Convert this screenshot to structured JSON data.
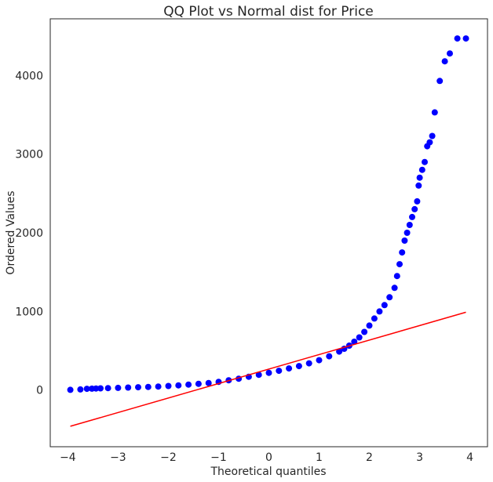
{
  "chart_data": {
    "type": "scatter",
    "title": "QQ Plot vs Normal dist for Price",
    "xlabel": "Theoretical quantiles",
    "ylabel": "Ordered Values",
    "xlim": [
      -4.35,
      4.35
    ],
    "ylim": [
      -720,
      4720
    ],
    "xticks": [
      -4,
      -3,
      -2,
      -1,
      0,
      1,
      2,
      3,
      4
    ],
    "yticks": [
      0,
      1000,
      2000,
      3000,
      4000
    ],
    "xtick_labels": [
      "−4",
      "−3",
      "−2",
      "−1",
      "0",
      "1",
      "2",
      "3",
      "4"
    ],
    "ytick_labels": [
      "0",
      "1000",
      "2000",
      "3000",
      "4000"
    ],
    "grid": false,
    "series": [
      {
        "marker": "circle",
        "color": "#0000ff",
        "points": [
          [
            -3.95,
            3
          ],
          [
            -3.75,
            8
          ],
          [
            -3.62,
            16
          ],
          [
            -3.52,
            18
          ],
          [
            -3.44,
            20
          ],
          [
            -3.35,
            22
          ],
          [
            -3.2,
            25
          ],
          [
            -3.0,
            28
          ],
          [
            -2.8,
            32
          ],
          [
            -2.6,
            36
          ],
          [
            -2.4,
            40
          ],
          [
            -2.2,
            45
          ],
          [
            -2.0,
            52
          ],
          [
            -1.8,
            60
          ],
          [
            -1.6,
            70
          ],
          [
            -1.4,
            80
          ],
          [
            -1.2,
            90
          ],
          [
            -1.0,
            105
          ],
          [
            -0.8,
            125
          ],
          [
            -0.6,
            145
          ],
          [
            -0.4,
            170
          ],
          [
            -0.2,
            195
          ],
          [
            0.0,
            220
          ],
          [
            0.2,
            245
          ],
          [
            0.4,
            275
          ],
          [
            0.6,
            305
          ],
          [
            0.8,
            340
          ],
          [
            1.0,
            380
          ],
          [
            1.2,
            430
          ],
          [
            1.4,
            490
          ],
          [
            1.5,
            525
          ],
          [
            1.6,
            565
          ],
          [
            1.7,
            615
          ],
          [
            1.8,
            670
          ],
          [
            1.9,
            740
          ],
          [
            2.0,
            820
          ],
          [
            2.1,
            910
          ],
          [
            2.2,
            1000
          ],
          [
            2.3,
            1080
          ],
          [
            2.4,
            1180
          ],
          [
            2.5,
            1300
          ],
          [
            2.55,
            1450
          ],
          [
            2.6,
            1600
          ],
          [
            2.65,
            1750
          ],
          [
            2.7,
            1900
          ],
          [
            2.75,
            2000
          ],
          [
            2.8,
            2100
          ],
          [
            2.85,
            2200
          ],
          [
            2.9,
            2300
          ],
          [
            2.95,
            2400
          ],
          [
            2.98,
            2600
          ],
          [
            3.0,
            2700
          ],
          [
            3.05,
            2800
          ],
          [
            3.1,
            2900
          ],
          [
            3.15,
            3100
          ],
          [
            3.2,
            3150
          ],
          [
            3.25,
            3230
          ],
          [
            3.3,
            3530
          ],
          [
            3.4,
            3930
          ],
          [
            3.5,
            4180
          ],
          [
            3.6,
            4280
          ],
          [
            3.75,
            4470
          ],
          [
            3.92,
            4470
          ]
        ]
      },
      {
        "type": "line",
        "color": "#ff0000",
        "x": [
          -3.95,
          3.92
        ],
        "values": [
          -460,
          990
        ]
      }
    ]
  }
}
